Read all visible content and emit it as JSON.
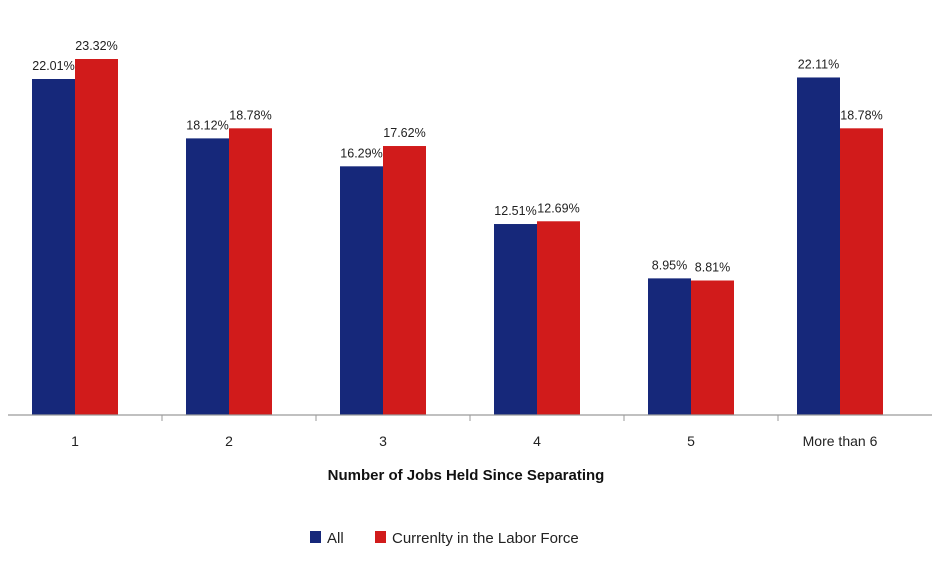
{
  "chart_data": {
    "type": "bar",
    "title": "",
    "xlabel": "Number of Jobs Held Since Separating",
    "ylabel": "",
    "categories": [
      "1",
      "2",
      "3",
      "4",
      "5",
      "More than 6"
    ],
    "series": [
      {
        "name": "All",
        "color": "#16287a",
        "values": [
          22.01,
          18.12,
          16.29,
          12.51,
          8.95,
          22.11
        ],
        "labels": [
          "22.01%",
          "18.12%",
          "16.29%",
          "12.51%",
          "8.95%",
          "22.11%"
        ]
      },
      {
        "name": "Currenlty in the Labor Force",
        "color": "#d11b1b",
        "values": [
          23.32,
          18.78,
          17.62,
          12.69,
          8.81,
          18.78
        ],
        "labels": [
          "23.32%",
          "18.78%",
          "17.62%",
          "12.69%",
          "8.81%",
          "18.78%"
        ]
      }
    ],
    "ylim": [
      0,
      26
    ],
    "grid": false,
    "legend_position": "bottom"
  }
}
